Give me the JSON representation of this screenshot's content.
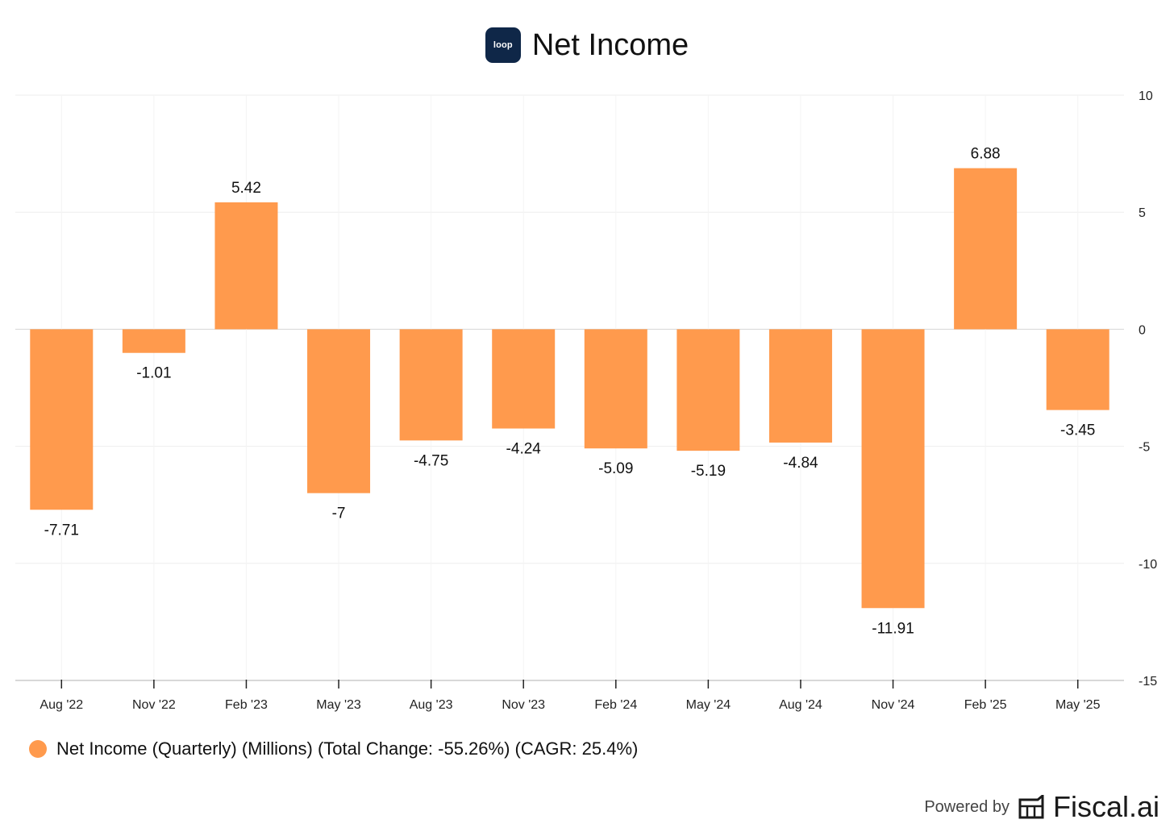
{
  "header": {
    "logo_text": "loop",
    "title": "Net Income"
  },
  "legend": {
    "label": "Net Income (Quarterly) (Millions) (Total Change: -55.26%) (CAGR: 25.4%)"
  },
  "footer": {
    "powered_label": "Powered by",
    "brand_name": "Fiscal.ai",
    "brand_icon": "fiscal-ai-icon"
  },
  "colors": {
    "bar": "#FF9A4D",
    "grid": "#eeeeee",
    "logo_bg": "#0f2748"
  },
  "chart_data": {
    "type": "bar",
    "title": "Net Income",
    "categories": [
      "Aug '22",
      "Nov '22",
      "Feb '23",
      "May '23",
      "Aug '23",
      "Nov '23",
      "Feb '24",
      "May '24",
      "Aug '24",
      "Nov '24",
      "Feb '25",
      "May '25"
    ],
    "series": [
      {
        "name": "Net Income (Quarterly) (Millions) (Total Change: -55.26%) (CAGR: 25.4%)",
        "values": [
          -7.71,
          -1.01,
          5.42,
          -7,
          -4.75,
          -4.24,
          -5.09,
          -5.19,
          -4.84,
          -11.91,
          6.88,
          -3.45
        ],
        "labels": [
          "-7.71",
          "-1.01",
          "5.42",
          "-7",
          "-4.75",
          "-4.24",
          "-5.09",
          "-5.19",
          "-4.84",
          "-11.91",
          "6.88",
          "-3.45"
        ]
      }
    ],
    "ylim": [
      -15,
      10
    ],
    "yticks": [
      10,
      5,
      0,
      -5,
      -10,
      -15
    ],
    "ytick_labels": [
      "10",
      "5",
      "0",
      "-5",
      "-10",
      "-15"
    ],
    "y_axis_position": "right",
    "grid": true,
    "legend_position": "bottom-left"
  }
}
